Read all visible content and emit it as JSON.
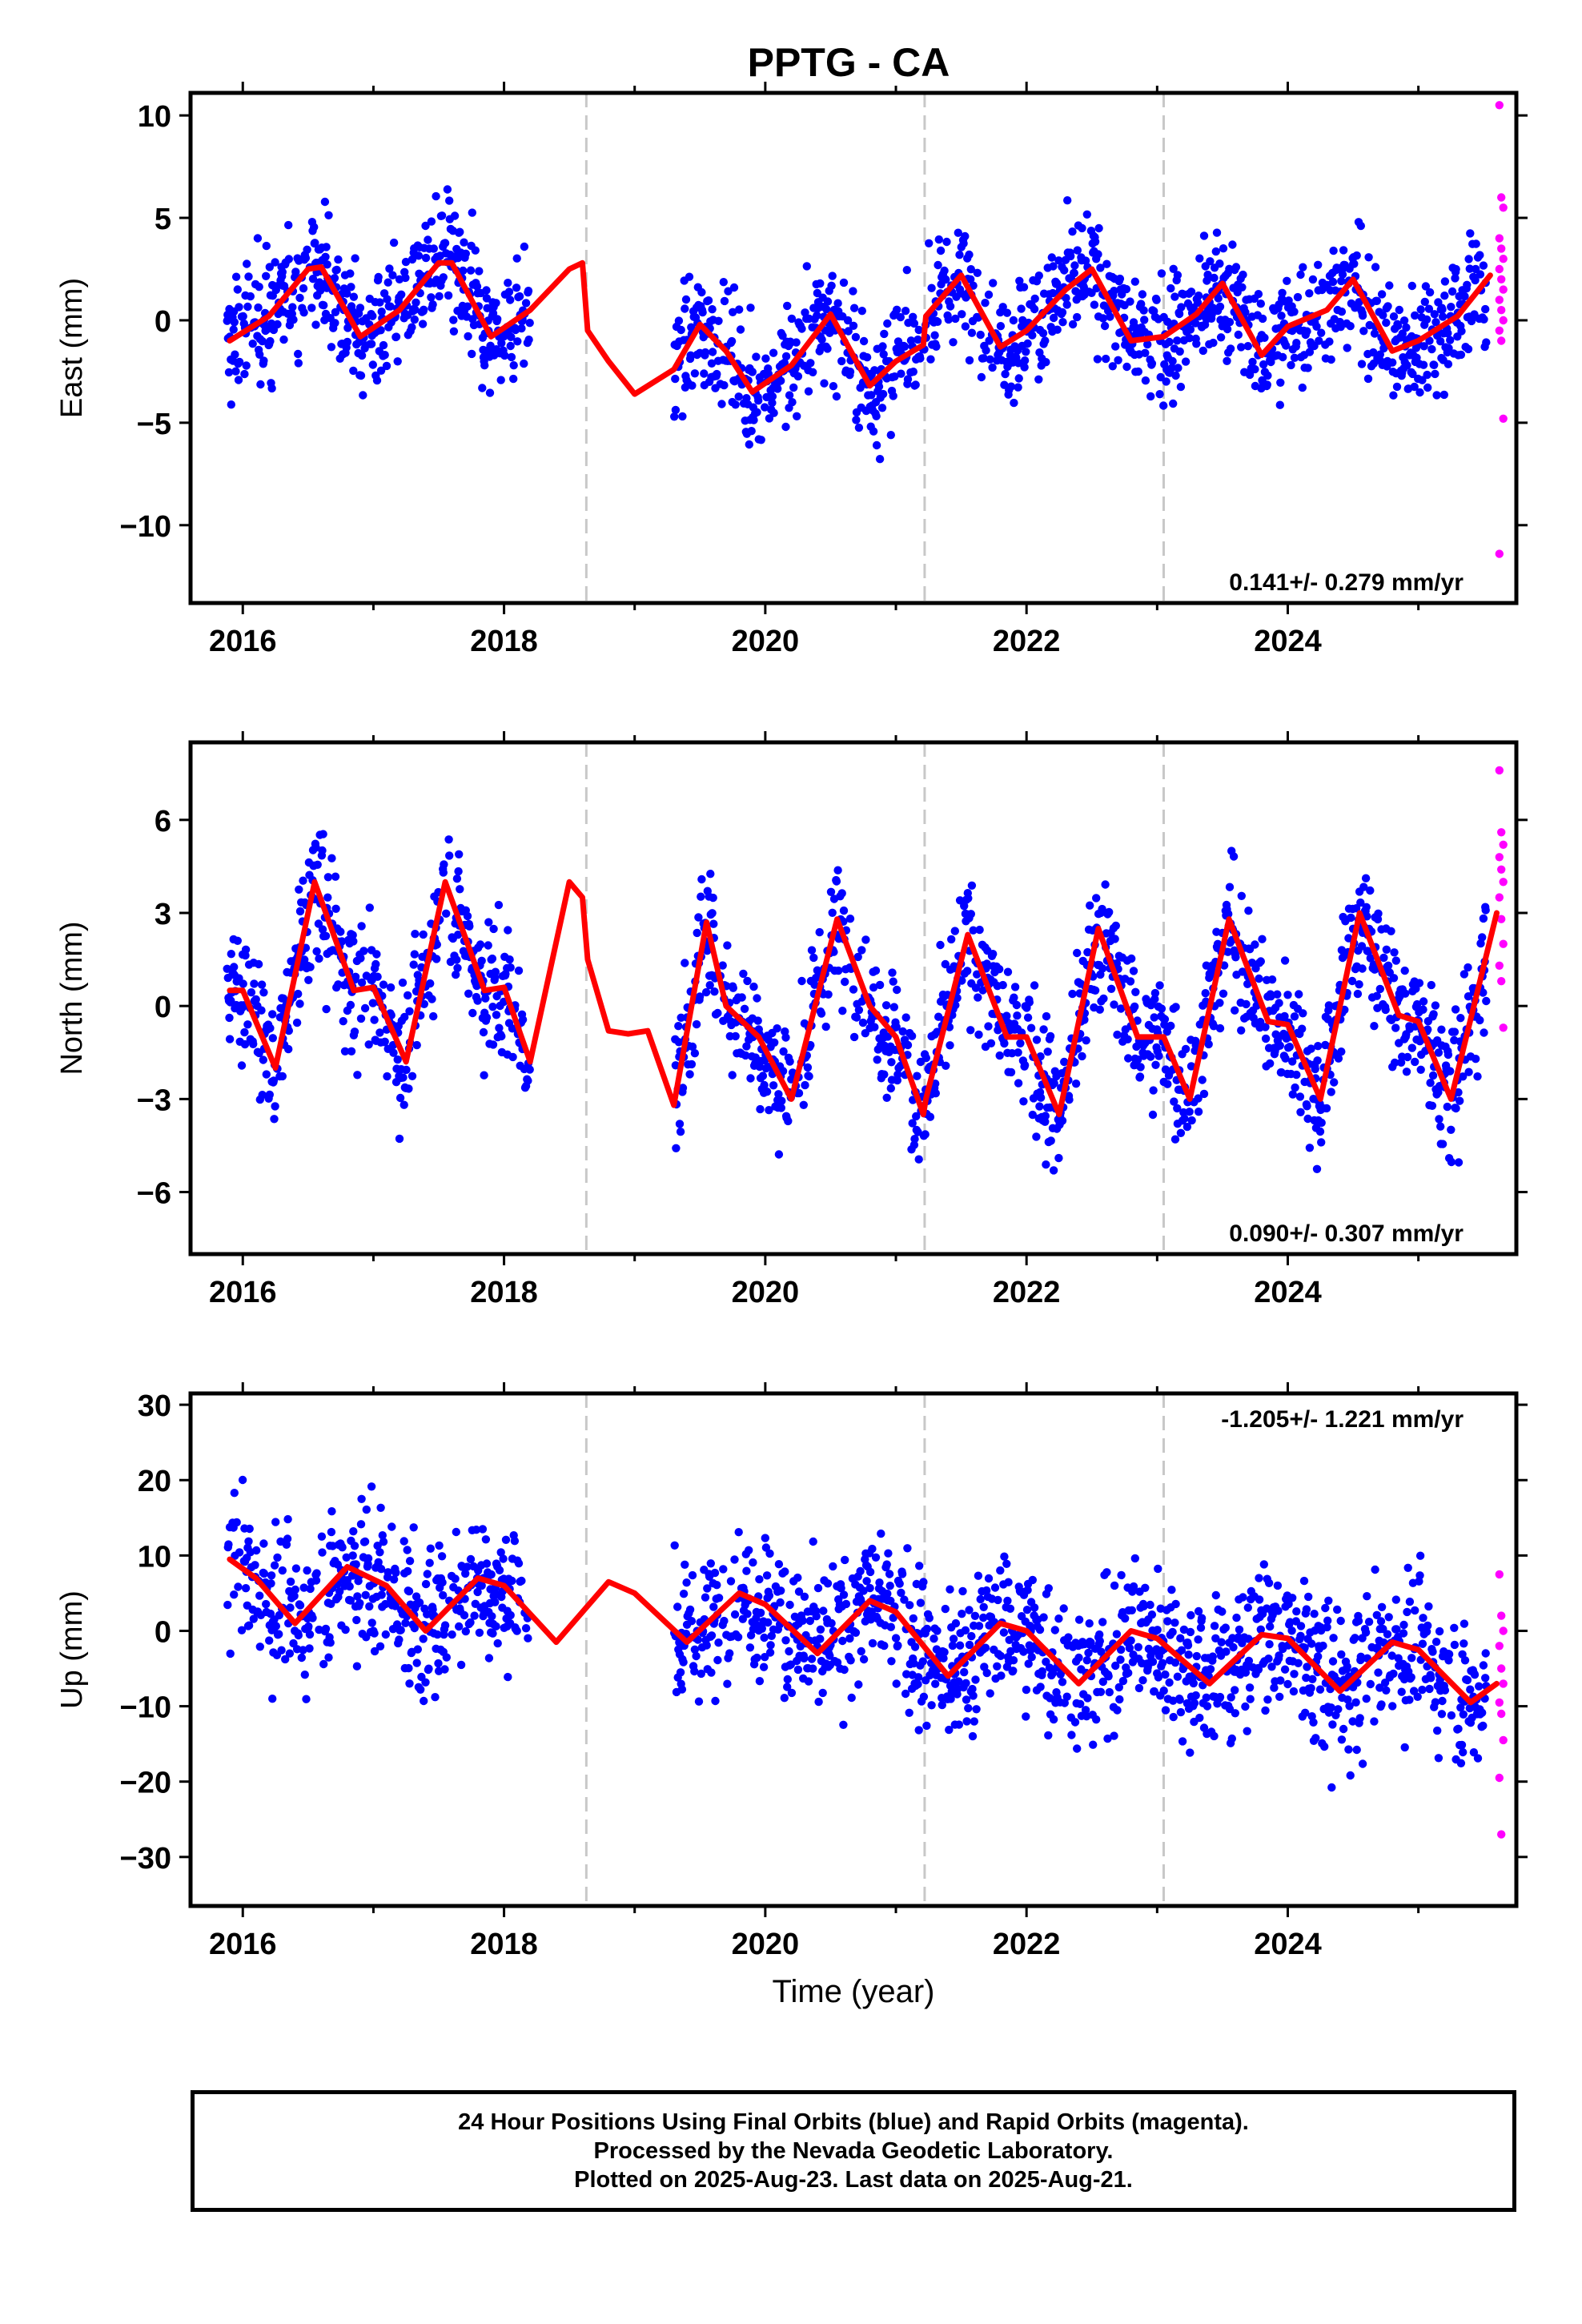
{
  "title": "PPTG - CA",
  "chart_data": [
    {
      "type": "scatter",
      "panel": "east",
      "ylabel": "East (mm)",
      "xlabel": "",
      "xlim": [
        2015.6,
        2025.75
      ],
      "ylim": [
        -13.8,
        11.1
      ],
      "yticks": [
        10,
        5,
        0,
        -5,
        -10
      ],
      "xticks": [
        2016,
        2018,
        2020,
        2022,
        2024
      ],
      "rate_label": "0.141+/- 0.279 mm/yr",
      "rate_position": "bottom-right",
      "amplitude": 2.5,
      "noise": 1.5,
      "breaks": [
        2018.63,
        2021.22,
        2023.05
      ],
      "series": [
        {
          "style": "final-orbits",
          "color": "#0000ff"
        },
        {
          "style": "rapid-orbits",
          "color": "#ff00ff",
          "y": [
            10.5,
            6.0,
            5.5,
            4.0,
            3.5,
            3.0,
            2.5,
            2.0,
            1.5,
            1.0,
            0.5,
            0.0,
            -0.5,
            -1.0,
            -4.8,
            -11.4
          ]
        },
        {
          "style": "model-fit",
          "color": "#ff0000",
          "x": [
            2015.9,
            2016.2,
            2016.5,
            2016.6,
            2016.9,
            2017.2,
            2017.5,
            2017.6,
            2017.9,
            2018.2,
            2018.5,
            2018.6,
            2018.64,
            2018.8,
            2019.0,
            2019.3,
            2019.5,
            2019.7,
            2019.9,
            2020.2,
            2020.5,
            2020.8,
            2021.0,
            2021.21,
            2021.23,
            2021.5,
            2021.8,
            2022.0,
            2022.3,
            2022.5,
            2022.8,
            2023.05,
            2023.3,
            2023.5,
            2023.8,
            2024.0,
            2024.3,
            2024.5,
            2024.8,
            2025.0,
            2025.3,
            2025.55
          ],
          "y": [
            -1.0,
            0.2,
            2.5,
            2.6,
            -0.8,
            0.5,
            2.8,
            2.8,
            -0.8,
            0.5,
            2.5,
            2.8,
            -0.5,
            -2.0,
            -3.6,
            -2.4,
            -0.2,
            -1.5,
            -3.5,
            -2.2,
            0.3,
            -3.2,
            -2.0,
            -1.2,
            0.2,
            2.2,
            -1.3,
            -0.5,
            1.5,
            2.5,
            -1.0,
            -0.8,
            0.3,
            1.8,
            -1.7,
            -0.3,
            0.5,
            2.0,
            -1.5,
            -1.0,
            0.2,
            2.2
          ]
        }
      ]
    },
    {
      "type": "scatter",
      "panel": "north",
      "ylabel": "North (mm)",
      "xlabel": "",
      "xlim": [
        2015.6,
        2025.75
      ],
      "ylim": [
        -8.0,
        8.5
      ],
      "yticks": [
        6,
        3,
        0,
        -3,
        -6
      ],
      "xticks": [
        2016,
        2018,
        2020,
        2022,
        2024
      ],
      "rate_label": "0.090+/- 0.307 mm/yr",
      "rate_position": "bottom-right",
      "amplitude": 3.0,
      "noise": 1.1,
      "breaks": [
        2018.63,
        2021.22,
        2023.05
      ],
      "series": [
        {
          "style": "final-orbits",
          "color": "#0000ff"
        },
        {
          "style": "rapid-orbits",
          "color": "#ff00ff",
          "y": [
            7.6,
            5.6,
            5.2,
            4.8,
            4.4,
            4.0,
            3.5,
            2.8,
            2.0,
            1.3,
            0.8,
            -0.7
          ]
        },
        {
          "style": "model-fit",
          "color": "#ff0000",
          "x": [
            2015.9,
            2016.0,
            2016.25,
            2016.55,
            2016.85,
            2017.0,
            2017.25,
            2017.55,
            2017.85,
            2018.0,
            2018.2,
            2018.5,
            2018.6,
            2018.64,
            2018.8,
            2018.95,
            2019.1,
            2019.3,
            2019.55,
            2019.7,
            2019.95,
            2020.2,
            2020.55,
            2020.8,
            2021.0,
            2021.21,
            2021.23,
            2021.55,
            2021.85,
            2022.0,
            2022.25,
            2022.55,
            2022.85,
            2023.05,
            2023.25,
            2023.55,
            2023.85,
            2024.0,
            2024.25,
            2024.55,
            2024.85,
            2025.0,
            2025.25,
            2025.6
          ],
          "y": [
            0.5,
            0.5,
            -2.0,
            4.0,
            0.5,
            0.6,
            -1.8,
            4.0,
            0.5,
            0.6,
            -1.8,
            4.0,
            3.5,
            1.5,
            -0.8,
            -0.9,
            -0.8,
            -3.2,
            2.7,
            0.0,
            -1.0,
            -3.0,
            2.8,
            0.0,
            -1.0,
            -3.5,
            -3.0,
            2.3,
            -1.0,
            -1.0,
            -3.5,
            2.5,
            -1.0,
            -1.0,
            -3.0,
            2.8,
            -0.5,
            -0.6,
            -3.0,
            3.0,
            -0.3,
            -0.5,
            -3.0,
            3.0
          ]
        }
      ]
    },
    {
      "type": "scatter",
      "panel": "up",
      "ylabel": "Up (mm)",
      "xlabel": "Time (year)",
      "xlim": [
        2015.6,
        2025.75
      ],
      "ylim": [
        -36.5,
        31.5
      ],
      "yticks": [
        30,
        20,
        10,
        0,
        -10,
        -20,
        -30
      ],
      "xticks": [
        2016,
        2018,
        2020,
        2022,
        2024
      ],
      "rate_label": "-1.205+/- 1.221 mm/yr",
      "rate_position": "top-right",
      "amplitude": 4.0,
      "noise": 5.0,
      "breaks": [
        2018.63,
        2021.22,
        2023.05
      ],
      "series": [
        {
          "style": "final-orbits",
          "color": "#0000ff"
        },
        {
          "style": "rapid-orbits",
          "color": "#ff00ff",
          "y": [
            7.5,
            2.0,
            0.0,
            -2.0,
            -5.0,
            -7.0,
            -9.5,
            -11.0,
            -14.5,
            -19.5,
            -27.0
          ]
        },
        {
          "style": "model-fit",
          "color": "#ff0000",
          "x": [
            2015.9,
            2016.1,
            2016.4,
            2016.8,
            2017.1,
            2017.4,
            2017.8,
            2018.0,
            2018.4,
            2018.8,
            2019.0,
            2019.4,
            2019.8,
            2020.0,
            2020.4,
            2020.8,
            2021.0,
            2021.4,
            2021.8,
            2022.0,
            2022.4,
            2022.8,
            2023.0,
            2023.4,
            2023.8,
            2024.0,
            2024.4,
            2024.8,
            2025.0,
            2025.4,
            2025.6
          ],
          "y": [
            9.5,
            7.0,
            1.0,
            8.5,
            6.0,
            0.0,
            7.0,
            6.0,
            -1.5,
            6.5,
            5.0,
            -1.5,
            5.0,
            3.5,
            -3.0,
            4.0,
            2.5,
            -6.0,
            1.0,
            0.0,
            -7.0,
            0.0,
            -1.0,
            -7.0,
            -0.5,
            -1.0,
            -8.0,
            -1.5,
            -2.5,
            -9.5,
            -7.0
          ]
        }
      ]
    }
  ],
  "caption": {
    "line1": "24 Hour Positions Using Final Orbits (blue) and Rapid Orbits (magenta).",
    "line2": "Processed by the Nevada Geodetic Laboratory.",
    "line3": "Plotted on 2025-Aug-23. Last data on 2025-Aug-21."
  }
}
